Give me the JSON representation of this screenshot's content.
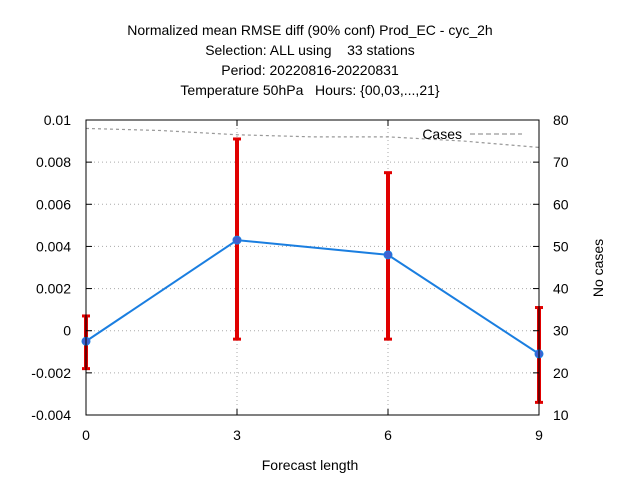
{
  "chart_data": {
    "type": "line",
    "title_lines": [
      "Normalized mean RMSE diff (90% conf) Prod_EC - cyc_2h",
      "Selection: ALL using    33 stations",
      "Period: 20220816-20220831",
      "Temperature 50hPa   Hours: {00,03,...,21}"
    ],
    "xlabel": "Forecast length",
    "ylabel": "",
    "y2label": "No cases",
    "x_ticks": [
      0,
      3,
      6,
      9
    ],
    "y_ticks": [
      -0.004,
      -0.002,
      0,
      0.002,
      0.004,
      0.006,
      0.008,
      0.01
    ],
    "y_tick_labels": [
      "-0.004",
      "-0.002",
      "0",
      "0.002",
      "0.004",
      "0.006",
      "0.008",
      "0.01"
    ],
    "y2_ticks": [
      10,
      20,
      30,
      40,
      50,
      60,
      70,
      80
    ],
    "y2_tick_labels": [
      "10",
      "20",
      "30",
      "40",
      "50",
      "60",
      "70",
      "80"
    ],
    "xlim": [
      0,
      9
    ],
    "ylim": [
      -0.004,
      0.01
    ],
    "y2lim": [
      10,
      80
    ],
    "grid": true,
    "colors": {
      "series": "#1a7ee0",
      "marker": "#4060d0",
      "errorbar": "#e00000",
      "cases": "#999999"
    },
    "series": [
      {
        "x": [
          0,
          3,
          6,
          9
        ],
        "values": [
          -0.0005,
          0.0043,
          0.0036,
          -0.0011
        ],
        "error_low": [
          -0.0018,
          -0.0004,
          -0.0004,
          -0.0034
        ],
        "error_high": [
          0.0007,
          0.0091,
          0.0075,
          0.0011
        ]
      }
    ],
    "cases_series": {
      "name": "Cases",
      "x": [
        0,
        1.5,
        3,
        4.5,
        6,
        7.5,
        9
      ],
      "values": [
        78,
        77.5,
        76.5,
        76,
        76,
        75,
        73.5
      ]
    },
    "legend_placement": "top-right"
  }
}
